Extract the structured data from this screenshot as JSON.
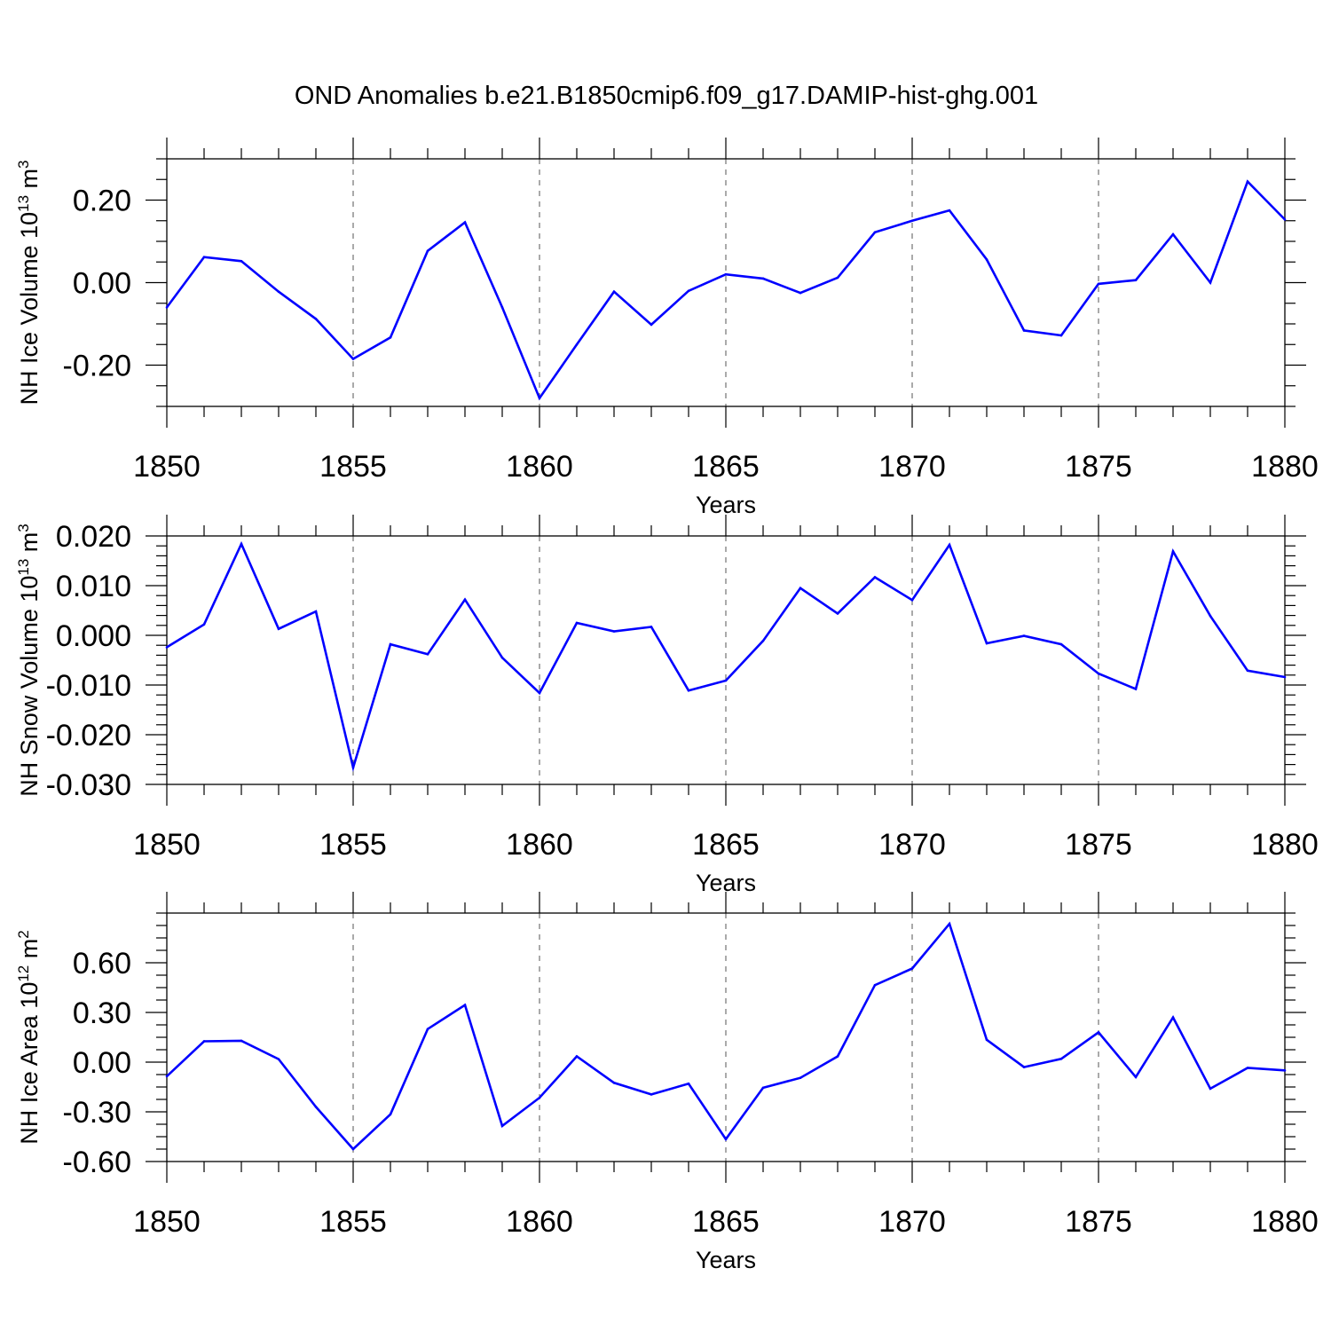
{
  "figure_title": "OND Anomalies b.e21.B1850cmip6.f09_g17.DAMIP-hist-ghg.001",
  "colors": {
    "line": "#0000ff",
    "axis": "#000000",
    "grid": "#555555"
  },
  "chart_data": [
    {
      "type": "line",
      "title": "",
      "xlabel": "Years",
      "ylabel": "NH Ice Volume 10¹³ m³",
      "ylabel_main": "NH Ice Volume 10",
      "ylabel_exp": "13",
      "ylabel_unit": " m",
      "ylabel_unit_exp": "3",
      "xlim": [
        1850,
        1880
      ],
      "ylim": [
        -0.3,
        0.3
      ],
      "x_ticks": [
        1850,
        1855,
        1860,
        1865,
        1870,
        1875,
        1880
      ],
      "x_tick_labels": [
        "1850",
        "1855",
        "1860",
        "1865",
        "1870",
        "1875",
        "1880"
      ],
      "y_ticks": [
        -0.2,
        0.0,
        0.2
      ],
      "y_tick_labels": [
        "-0.20",
        "0.00",
        "0.20"
      ],
      "y_minor_step": 0.05,
      "grid": "x-major dashed",
      "x": [
        1850,
        1851,
        1852,
        1853,
        1854,
        1855,
        1856,
        1857,
        1858,
        1859,
        1860,
        1861,
        1862,
        1863,
        1864,
        1865,
        1866,
        1867,
        1868,
        1869,
        1870,
        1871,
        1872,
        1873,
        1874,
        1875,
        1876,
        1877,
        1878,
        1879,
        1880
      ],
      "series": [
        {
          "name": "NH Ice Volume",
          "values": [
            -0.06,
            0.062,
            0.052,
            -0.022,
            -0.088,
            -0.185,
            -0.133,
            0.077,
            0.146,
            -0.06,
            -0.28,
            -0.15,
            -0.022,
            -0.102,
            -0.02,
            0.02,
            0.01,
            -0.025,
            0.012,
            0.122,
            0.15,
            0.175,
            0.056,
            -0.116,
            -0.128,
            -0.003,
            0.006,
            0.117,
            0.0,
            0.245,
            0.153
          ]
        }
      ]
    },
    {
      "type": "line",
      "title": "",
      "xlabel": "Years",
      "ylabel": "NH Snow Volume 10¹³ m³",
      "ylabel_main": "NH Snow Volume 10",
      "ylabel_exp": "13",
      "ylabel_unit": " m",
      "ylabel_unit_exp": "3",
      "xlim": [
        1850,
        1880
      ],
      "ylim": [
        -0.03,
        0.02
      ],
      "x_ticks": [
        1850,
        1855,
        1860,
        1865,
        1870,
        1875,
        1880
      ],
      "x_tick_labels": [
        "1850",
        "1855",
        "1860",
        "1865",
        "1870",
        "1875",
        "1880"
      ],
      "y_ticks": [
        -0.03,
        -0.02,
        -0.01,
        0.0,
        0.01,
        0.02
      ],
      "y_tick_labels": [
        "-0.030",
        "-0.020",
        "-0.010",
        "0.000",
        "0.010",
        "0.020"
      ],
      "y_minor_step": 0.002,
      "grid": "x-major dashed",
      "x": [
        1850,
        1851,
        1852,
        1853,
        1854,
        1855,
        1856,
        1857,
        1858,
        1859,
        1860,
        1861,
        1862,
        1863,
        1864,
        1865,
        1866,
        1867,
        1868,
        1869,
        1870,
        1871,
        1872,
        1873,
        1874,
        1875,
        1876,
        1877,
        1878,
        1879,
        1880
      ],
      "series": [
        {
          "name": "NH Snow Volume",
          "values": [
            -0.0024,
            0.0022,
            0.0184,
            0.0013,
            0.0048,
            -0.0266,
            -0.0018,
            -0.0038,
            0.0072,
            -0.0045,
            -0.0116,
            0.0025,
            0.0008,
            0.0017,
            -0.0111,
            -0.0091,
            -0.0011,
            0.0095,
            0.0044,
            0.0117,
            0.0071,
            0.0182,
            -0.0016,
            -0.0001,
            -0.0018,
            -0.0077,
            -0.0108,
            0.0169,
            0.0039,
            -0.0071,
            -0.0084
          ]
        }
      ]
    },
    {
      "type": "line",
      "title": "",
      "xlabel": "Years",
      "ylabel": "NH Ice Area 10¹² m²",
      "ylabel_main": "NH Ice Area 10",
      "ylabel_exp": "12",
      "ylabel_unit": " m",
      "ylabel_unit_exp": "2",
      "xlim": [
        1850,
        1880
      ],
      "ylim": [
        -0.6,
        0.9
      ],
      "x_ticks": [
        1850,
        1855,
        1860,
        1865,
        1870,
        1875,
        1880
      ],
      "x_tick_labels": [
        "1850",
        "1855",
        "1860",
        "1865",
        "1870",
        "1875",
        "1880"
      ],
      "y_ticks": [
        -0.6,
        -0.3,
        0.0,
        0.3,
        0.6
      ],
      "y_tick_labels": [
        "-0.60",
        "-0.30",
        "0.00",
        "0.30",
        "0.60"
      ],
      "y_minor_step": 0.075,
      "grid": "x-major dashed",
      "x": [
        1850,
        1851,
        1852,
        1853,
        1854,
        1855,
        1856,
        1857,
        1858,
        1859,
        1860,
        1861,
        1862,
        1863,
        1864,
        1865,
        1866,
        1867,
        1868,
        1869,
        1870,
        1871,
        1872,
        1873,
        1874,
        1875,
        1876,
        1877,
        1878,
        1879,
        1880
      ],
      "series": [
        {
          "name": "NH Ice Area",
          "values": [
            -0.085,
            0.126,
            0.129,
            0.018,
            -0.27,
            -0.525,
            -0.315,
            0.2,
            0.345,
            -0.385,
            -0.215,
            0.035,
            -0.125,
            -0.195,
            -0.13,
            -0.465,
            -0.155,
            -0.095,
            0.035,
            0.465,
            0.565,
            0.835,
            0.135,
            -0.03,
            0.02,
            0.18,
            -0.09,
            0.27,
            -0.16,
            -0.035,
            -0.05
          ]
        }
      ]
    }
  ]
}
